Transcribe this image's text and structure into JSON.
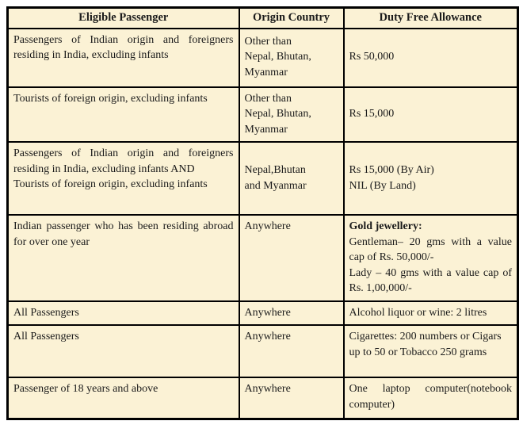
{
  "colors": {
    "cell_background": "#fbf2d5",
    "border": "#000000",
    "text": "#1b1b1b"
  },
  "table": {
    "headers": [
      {
        "label": "Eligible Passenger"
      },
      {
        "label": "Origin Country"
      },
      {
        "label": "Duty Free Allowance"
      }
    ],
    "rows": [
      {
        "passenger": "Passengers of Indian origin and foreigners residing in India, excluding infants",
        "origin": "Other than\nNepal, Bhutan,\nMyanmar",
        "allowance": "Rs 50,000"
      },
      {
        "passenger": "Tourists of foreign origin, excluding infants",
        "origin": "Other than\nNepal, Bhutan,\nMyanmar",
        "allowance": "Rs 15,000"
      },
      {
        "passenger": "Passengers of Indian origin and foreigners residing in India, excluding infants AND\nTourists of foreign origin, excluding infants",
        "origin": "Nepal,Bhutan\nand Myanmar",
        "allowance": "Rs 15,000 (By Air)\nNIL (By Land)"
      },
      {
        "passenger": "Indian passenger who has been residing abroad for over one year",
        "origin": "Anywhere",
        "allowance_heading": "Gold jewellery:",
        "allowance": "Gentleman– 20 gms with a value cap of Rs. 50,000/-\nLady – 40 gms with a value cap of Rs. 1,00,000/-"
      },
      {
        "passenger": "All Passengers",
        "origin": "Anywhere",
        "allowance": "Alcohol liquor or wine: 2 litres"
      },
      {
        "passenger": "All Passengers",
        "origin": "Anywhere",
        "allowance": "Cigarettes: 200 numbers or Cigars up to 50 or Tobacco 250 grams"
      },
      {
        "passenger": "Passenger of 18 years and above",
        "origin": "Anywhere",
        "allowance": "One laptop computer(notebook computer)"
      }
    ]
  }
}
